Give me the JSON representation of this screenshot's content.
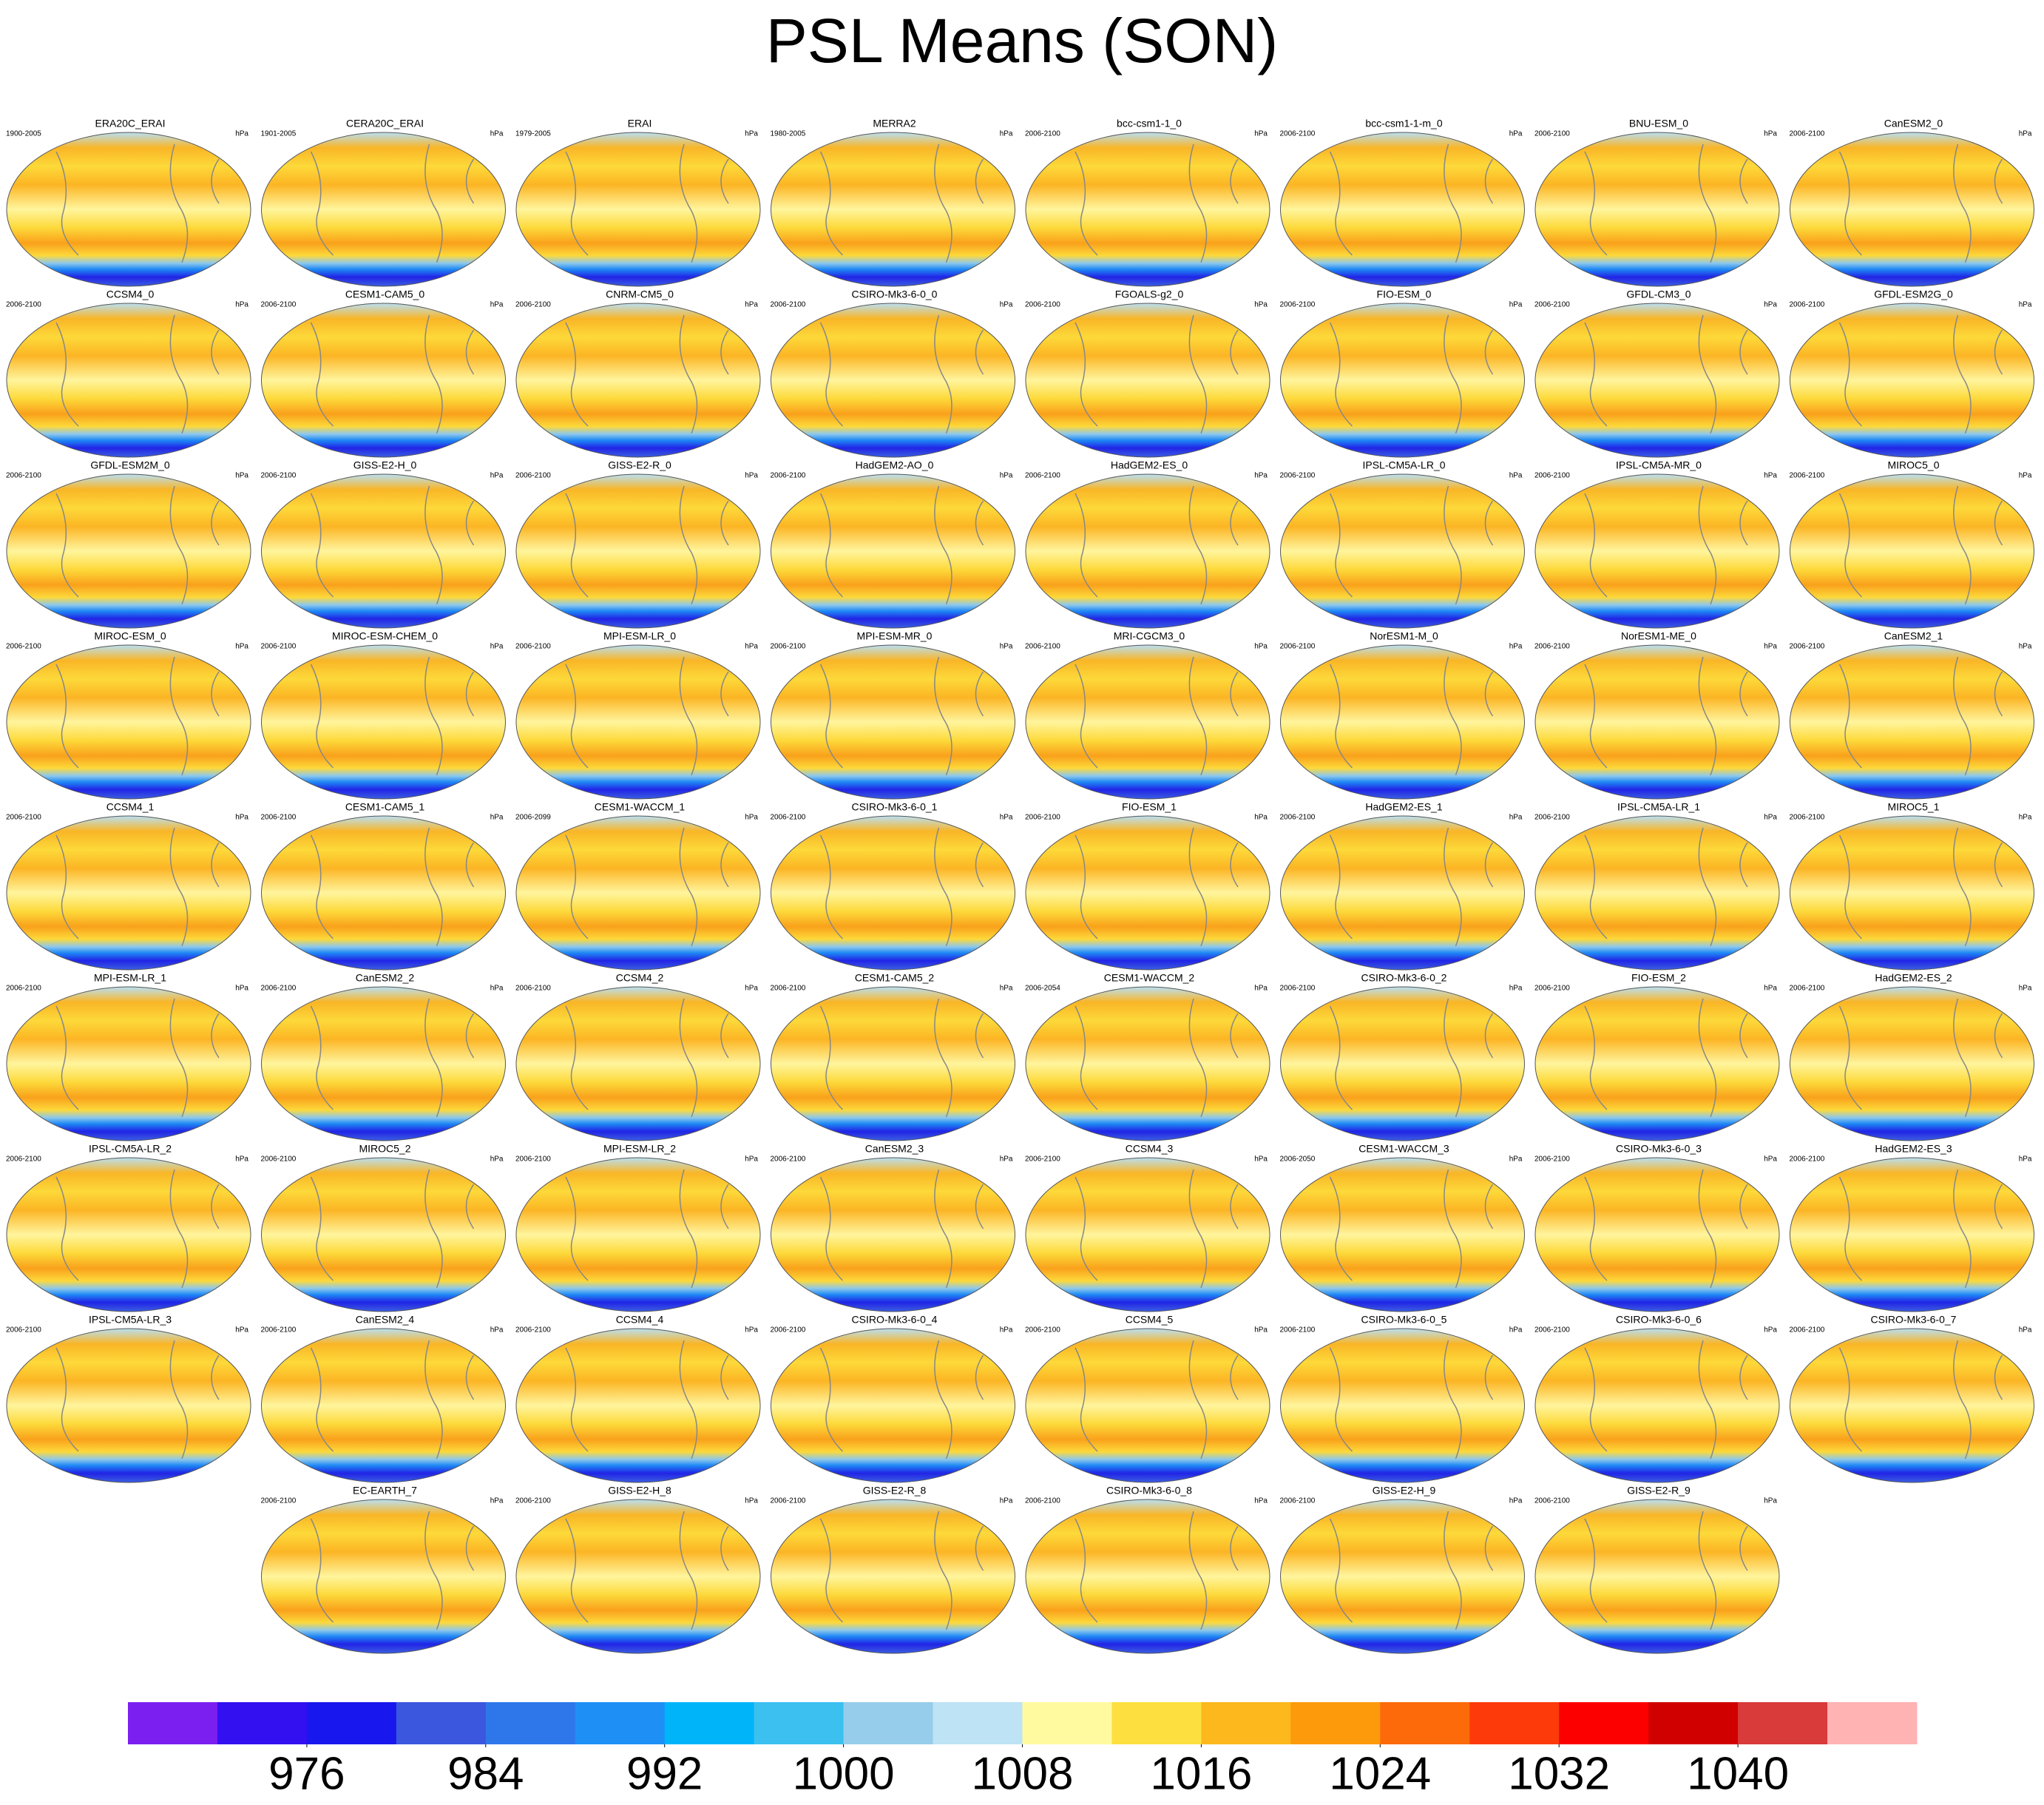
{
  "chart_data": {
    "type": "map",
    "title": "PSL Means (SON)",
    "panels": [
      {
        "title": "ERA20C_ERAI",
        "period": "1900-2005",
        "units": "hPa"
      },
      {
        "title": "CERA20C_ERAI",
        "period": "1901-2005",
        "units": "hPa"
      },
      {
        "title": "ERAI",
        "period": "1979-2005",
        "units": "hPa"
      },
      {
        "title": "MERRA2",
        "period": "1980-2005",
        "units": "hPa"
      },
      {
        "title": "bcc-csm1-1_0",
        "period": "2006-2100",
        "units": "hPa"
      },
      {
        "title": "bcc-csm1-1-m_0",
        "period": "2006-2100",
        "units": "hPa"
      },
      {
        "title": "BNU-ESM_0",
        "period": "2006-2100",
        "units": "hPa"
      },
      {
        "title": "CanESM2_0",
        "period": "2006-2100",
        "units": "hPa"
      },
      {
        "title": "CCSM4_0",
        "period": "2006-2100",
        "units": "hPa"
      },
      {
        "title": "CESM1-CAM5_0",
        "period": "2006-2100",
        "units": "hPa"
      },
      {
        "title": "CNRM-CM5_0",
        "period": "2006-2100",
        "units": "hPa"
      },
      {
        "title": "CSIRO-Mk3-6-0_0",
        "period": "2006-2100",
        "units": "hPa"
      },
      {
        "title": "FGOALS-g2_0",
        "period": "2006-2100",
        "units": "hPa"
      },
      {
        "title": "FIO-ESM_0",
        "period": "2006-2100",
        "units": "hPa"
      },
      {
        "title": "GFDL-CM3_0",
        "period": "2006-2100",
        "units": "hPa"
      },
      {
        "title": "GFDL-ESM2G_0",
        "period": "2006-2100",
        "units": "hPa"
      },
      {
        "title": "GFDL-ESM2M_0",
        "period": "2006-2100",
        "units": "hPa"
      },
      {
        "title": "GISS-E2-H_0",
        "period": "2006-2100",
        "units": "hPa"
      },
      {
        "title": "GISS-E2-R_0",
        "period": "2006-2100",
        "units": "hPa"
      },
      {
        "title": "HadGEM2-AO_0",
        "period": "2006-2100",
        "units": "hPa"
      },
      {
        "title": "HadGEM2-ES_0",
        "period": "2006-2100",
        "units": "hPa"
      },
      {
        "title": "IPSL-CM5A-LR_0",
        "period": "2006-2100",
        "units": "hPa"
      },
      {
        "title": "IPSL-CM5A-MR_0",
        "period": "2006-2100",
        "units": "hPa"
      },
      {
        "title": "MIROC5_0",
        "period": "2006-2100",
        "units": "hPa"
      },
      {
        "title": "MIROC-ESM_0",
        "period": "2006-2100",
        "units": "hPa"
      },
      {
        "title": "MIROC-ESM-CHEM_0",
        "period": "2006-2100",
        "units": "hPa"
      },
      {
        "title": "MPI-ESM-LR_0",
        "period": "2006-2100",
        "units": "hPa"
      },
      {
        "title": "MPI-ESM-MR_0",
        "period": "2006-2100",
        "units": "hPa"
      },
      {
        "title": "MRI-CGCM3_0",
        "period": "2006-2100",
        "units": "hPa"
      },
      {
        "title": "NorESM1-M_0",
        "period": "2006-2100",
        "units": "hPa"
      },
      {
        "title": "NorESM1-ME_0",
        "period": "2006-2100",
        "units": "hPa"
      },
      {
        "title": "CanESM2_1",
        "period": "2006-2100",
        "units": "hPa"
      },
      {
        "title": "CCSM4_1",
        "period": "2006-2100",
        "units": "hPa"
      },
      {
        "title": "CESM1-CAM5_1",
        "period": "2006-2100",
        "units": "hPa"
      },
      {
        "title": "CESM1-WACCM_1",
        "period": "2006-2099",
        "units": "hPa"
      },
      {
        "title": "CSIRO-Mk3-6-0_1",
        "period": "2006-2100",
        "units": "hPa"
      },
      {
        "title": "FIO-ESM_1",
        "period": "2006-2100",
        "units": "hPa"
      },
      {
        "title": "HadGEM2-ES_1",
        "period": "2006-2100",
        "units": "hPa"
      },
      {
        "title": "IPSL-CM5A-LR_1",
        "period": "2006-2100",
        "units": "hPa"
      },
      {
        "title": "MIROC5_1",
        "period": "2006-2100",
        "units": "hPa"
      },
      {
        "title": "MPI-ESM-LR_1",
        "period": "2006-2100",
        "units": "hPa"
      },
      {
        "title": "CanESM2_2",
        "period": "2006-2100",
        "units": "hPa"
      },
      {
        "title": "CCSM4_2",
        "period": "2006-2100",
        "units": "hPa"
      },
      {
        "title": "CESM1-CAM5_2",
        "period": "2006-2100",
        "units": "hPa"
      },
      {
        "title": "CESM1-WACCM_2",
        "period": "2006-2054",
        "units": "hPa"
      },
      {
        "title": "CSIRO-Mk3-6-0_2",
        "period": "2006-2100",
        "units": "hPa"
      },
      {
        "title": "FIO-ESM_2",
        "period": "2006-2100",
        "units": "hPa"
      },
      {
        "title": "HadGEM2-ES_2",
        "period": "2006-2100",
        "units": "hPa"
      },
      {
        "title": "IPSL-CM5A-LR_2",
        "period": "2006-2100",
        "units": "hPa"
      },
      {
        "title": "MIROC5_2",
        "period": "2006-2100",
        "units": "hPa"
      },
      {
        "title": "MPI-ESM-LR_2",
        "period": "2006-2100",
        "units": "hPa"
      },
      {
        "title": "CanESM2_3",
        "period": "2006-2100",
        "units": "hPa"
      },
      {
        "title": "CCSM4_3",
        "period": "2006-2100",
        "units": "hPa"
      },
      {
        "title": "CESM1-WACCM_3",
        "period": "2006-2050",
        "units": "hPa"
      },
      {
        "title": "CSIRO-Mk3-6-0_3",
        "period": "2006-2100",
        "units": "hPa"
      },
      {
        "title": "HadGEM2-ES_3",
        "period": "2006-2100",
        "units": "hPa"
      },
      {
        "title": "IPSL-CM5A-LR_3",
        "period": "2006-2100",
        "units": "hPa"
      },
      {
        "title": "CanESM2_4",
        "period": "2006-2100",
        "units": "hPa"
      },
      {
        "title": "CCSM4_4",
        "period": "2006-2100",
        "units": "hPa"
      },
      {
        "title": "CSIRO-Mk3-6-0_4",
        "period": "2006-2100",
        "units": "hPa"
      },
      {
        "title": "CCSM4_5",
        "period": "2006-2100",
        "units": "hPa"
      },
      {
        "title": "CSIRO-Mk3-6-0_5",
        "period": "2006-2100",
        "units": "hPa"
      },
      {
        "title": "CSIRO-Mk3-6-0_6",
        "period": "2006-2100",
        "units": "hPa"
      },
      {
        "title": "CSIRO-Mk3-6-0_7",
        "period": "2006-2100",
        "units": "hPa"
      },
      {
        "title": "EC-EARTH_7",
        "period": "2006-2100",
        "units": "hPa"
      },
      {
        "title": "GISS-E2-H_8",
        "period": "2006-2100",
        "units": "hPa"
      },
      {
        "title": "GISS-E2-R_8",
        "period": "2006-2100",
        "units": "hPa"
      },
      {
        "title": "CSIRO-Mk3-6-0_8",
        "period": "2006-2100",
        "units": "hPa"
      },
      {
        "title": "GISS-E2-H_9",
        "period": "2006-2100",
        "units": "hPa"
      },
      {
        "title": "GISS-E2-R_9",
        "period": "2006-2100",
        "units": "hPa"
      }
    ],
    "colorbar": {
      "lim": [
        968,
        1048
      ],
      "ticks": [
        976,
        984,
        992,
        1000,
        1008,
        1016,
        1024,
        1032,
        1040
      ],
      "colors": [
        "#7b1ff0",
        "#3310f0",
        "#1818ee",
        "#3a57de",
        "#2e77ea",
        "#1e90f5",
        "#00b4fa",
        "#3cc0f0",
        "#96cdeb",
        "#bde3f5",
        "#fffaa0",
        "#fde040",
        "#fcb81c",
        "#fc9a0c",
        "#fc6a0a",
        "#fc3a0a",
        "#fc0000",
        "#d00000",
        "#d93a3a",
        "#ffb3b3"
      ]
    }
  }
}
